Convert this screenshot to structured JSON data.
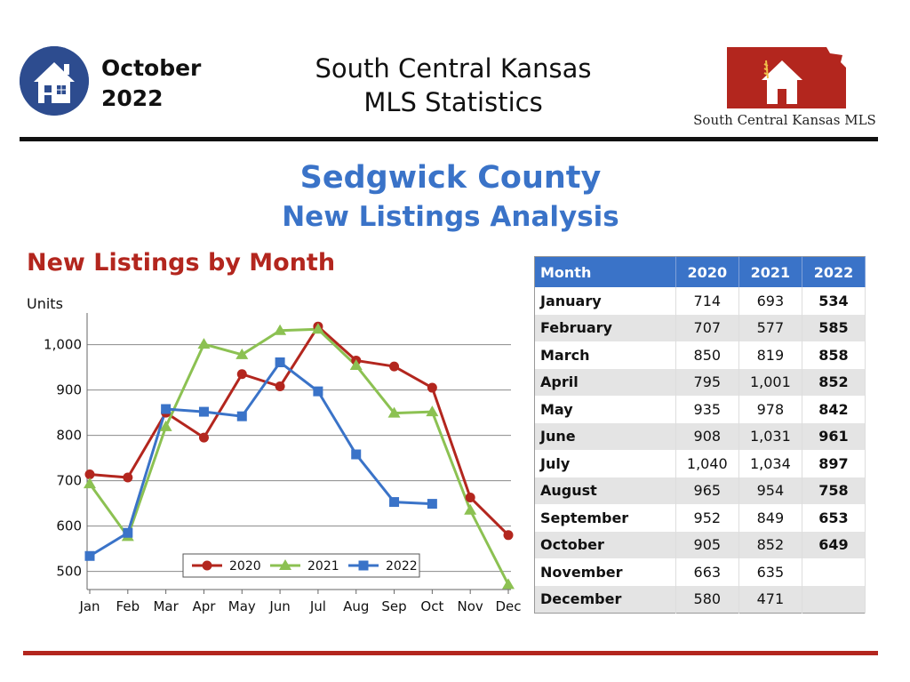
{
  "header": {
    "month": "October",
    "year": "2022",
    "title_line1": "South Central Kansas",
    "title_line2": "MLS Statistics",
    "logo_text": "South Central Kansas MLS"
  },
  "report": {
    "county": "Sedgwick County",
    "subtitle": "New Listings Analysis",
    "chart_heading": "New Listings by Month"
  },
  "colors": {
    "blue": "#3a73c8",
    "red": "#b3261e",
    "green": "#8cc152",
    "series_2020": "#b3261e",
    "series_2021": "#8cc152",
    "series_2022": "#3a73c8"
  },
  "chart_data": {
    "type": "line",
    "ylabel": "Units",
    "xlabel": "",
    "categories": [
      "Jan",
      "Feb",
      "Mar",
      "Apr",
      "May",
      "Jun",
      "Jul",
      "Aug",
      "Sep",
      "Oct",
      "Nov",
      "Dec"
    ],
    "yticks": [
      500,
      600,
      700,
      800,
      900,
      1000
    ],
    "ytick_labels": [
      "500",
      "600",
      "700",
      "800",
      "900",
      "1,000"
    ],
    "ylim": [
      460,
      1060
    ],
    "grid": true,
    "legend_position": "bottom-center",
    "series": [
      {
        "name": "2020",
        "marker": "circle",
        "values": [
          714,
          707,
          850,
          795,
          935,
          908,
          1040,
          965,
          952,
          905,
          663,
          580
        ]
      },
      {
        "name": "2021",
        "marker": "triangle",
        "values": [
          693,
          577,
          819,
          1001,
          978,
          1031,
          1034,
          954,
          849,
          852,
          635,
          471
        ]
      },
      {
        "name": "2022",
        "marker": "square",
        "values": [
          534,
          585,
          858,
          852,
          842,
          961,
          897,
          758,
          653,
          649,
          null,
          null
        ]
      }
    ]
  },
  "table": {
    "headers": [
      "Month",
      "2020",
      "2021",
      "2022"
    ],
    "rows": [
      [
        "January",
        "714",
        "693",
        "534"
      ],
      [
        "February",
        "707",
        "577",
        "585"
      ],
      [
        "March",
        "850",
        "819",
        "858"
      ],
      [
        "April",
        "795",
        "1,001",
        "852"
      ],
      [
        "May",
        "935",
        "978",
        "842"
      ],
      [
        "June",
        "908",
        "1,031",
        "961"
      ],
      [
        "July",
        "1,040",
        "1,034",
        "897"
      ],
      [
        "August",
        "965",
        "954",
        "758"
      ],
      [
        "September",
        "952",
        "849",
        "653"
      ],
      [
        "October",
        "905",
        "852",
        "649"
      ],
      [
        "November",
        "663",
        "635",
        ""
      ],
      [
        "December",
        "580",
        "471",
        ""
      ]
    ]
  }
}
